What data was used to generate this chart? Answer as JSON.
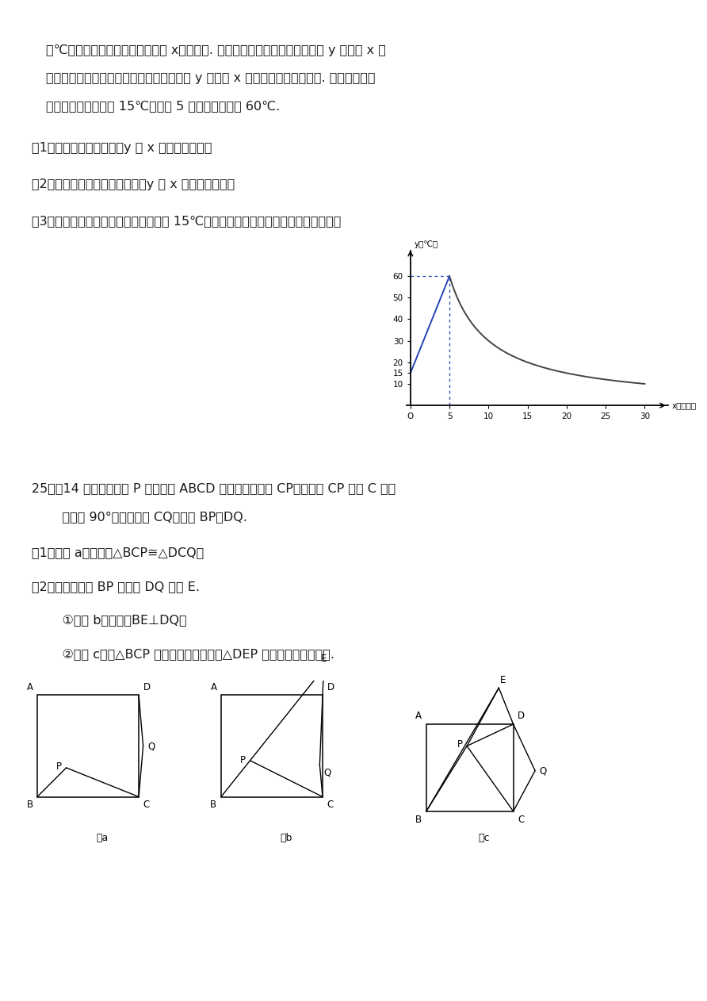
{
  "bg_color": "#ffffff",
  "line1": "（℃），从加热开始计算的时间为 x（分钟）. 据了解，设该材料加热时，温度 y 与时间 x 成",
  "line2": "一次函数关系；停止加热进行操作时，温度 y 与时间 x 成反比例关系（如图）. 已知该材料在",
  "line3": "操作加工前的温度为 15℃，加热 5 分钟后温度达到 60℃.",
  "q1": "（1）求出将材料加热时，y 与 x 的函数关系式；",
  "q2": "（2）求出停止加热进行操作时，y 与 x 的函数关系式；",
  "q3": "（3）根据工艺要求，当材料的温度低于 15℃时，须停止操作，那么操作时间是多少？",
  "q25_header": "25．（14 分）如图，点 P 是正方形 ABCD 内的一点，连接 CP，将线段 CP 绕点 C 顺时",
  "q25_sub": "    针旋转 90°，得到线段 CQ，连接 BP，DQ.",
  "q25_1": "（1）如图 a，求证：△BCP≅△DCQ；",
  "q25_2": "（2）如图，延长 BP 交直线 DQ 于点 E.",
  "q25_2a": "    ①如图 b，求证：BE⊥DQ；",
  "q25_2b": "    ②如图 c，若△BCP 为等边三角形，判断△DEP 的形状，并说明理由.",
  "figa_label": "图a",
  "figb_label": "图b",
  "figc_label": "图c"
}
